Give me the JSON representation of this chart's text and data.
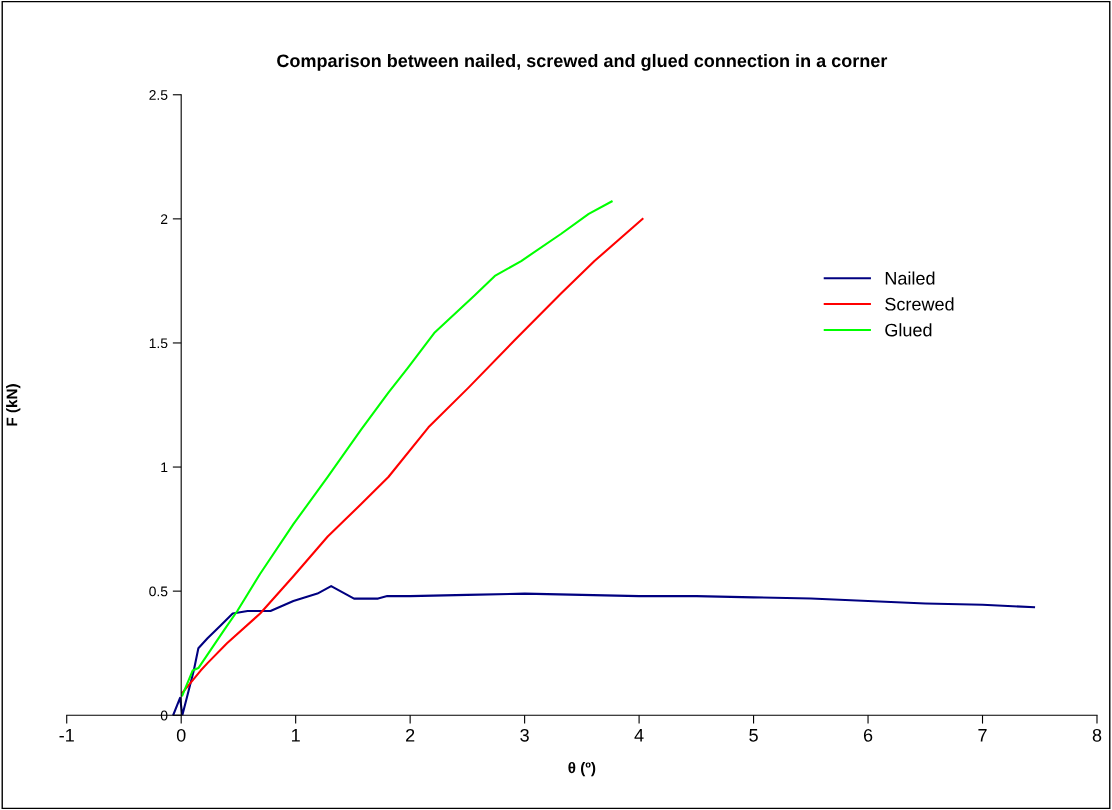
{
  "chart_data": {
    "type": "line",
    "title": "Comparison between nailed, screwed and glued connection in a corner",
    "xlabel": "θ (º)",
    "ylabel": "F (kN)",
    "xlim": [
      -1,
      8
    ],
    "xticks": [
      -1,
      0,
      1,
      2,
      3,
      4,
      5,
      6,
      7,
      8
    ],
    "ylim": [
      0,
      2.5
    ],
    "yticks": [
      0,
      0.5,
      1,
      1.5,
      2,
      2.5
    ],
    "grid": false,
    "legend": "right",
    "marker": "none",
    "line_style": "solid",
    "series": [
      {
        "name": "Nailed",
        "color": "#000080",
        "x": [
          -0.07,
          -0.01,
          0.01,
          0.11,
          0.15,
          0.23,
          0.34,
          0.45,
          0.58,
          0.78,
          0.98,
          1.19,
          1.31,
          1.51,
          1.72,
          1.8,
          2.0,
          2.5,
          3.0,
          3.5,
          4.0,
          4.5,
          5.0,
          5.5,
          6.0,
          6.5,
          7.0,
          7.45
        ],
        "values": [
          0,
          0.07,
          0,
          0.18,
          0.27,
          0.31,
          0.36,
          0.41,
          0.42,
          0.42,
          0.46,
          0.49,
          0.52,
          0.47,
          0.47,
          0.48,
          0.48,
          0.485,
          0.49,
          0.485,
          0.48,
          0.48,
          0.475,
          0.47,
          0.46,
          0.45,
          0.445,
          0.435
        ]
      },
      {
        "name": "Screwed",
        "color": "#ff0000",
        "x": [
          0.01,
          0.17,
          0.23,
          0.4,
          0.69,
          0.98,
          1.28,
          1.57,
          1.81,
          2.16,
          2.51,
          2.91,
          3.32,
          3.61,
          4.03
        ],
        "values": [
          0.09,
          0.18,
          0.21,
          0.29,
          0.41,
          0.56,
          0.72,
          0.85,
          0.96,
          1.16,
          1.32,
          1.51,
          1.7,
          1.83,
          2.0
        ]
      },
      {
        "name": "Glued",
        "color": "#00ff00",
        "x": [
          0.01,
          0.1,
          0.15,
          0.37,
          0.49,
          0.69,
          0.98,
          1.28,
          1.57,
          1.81,
          1.98,
          2.21,
          2.56,
          2.74,
          2.97,
          3.32,
          3.56,
          3.76
        ],
        "values": [
          0.08,
          0.18,
          0.19,
          0.34,
          0.42,
          0.57,
          0.77,
          0.96,
          1.15,
          1.3,
          1.4,
          1.54,
          1.69,
          1.77,
          1.83,
          1.94,
          2.02,
          2.07
        ]
      }
    ]
  }
}
